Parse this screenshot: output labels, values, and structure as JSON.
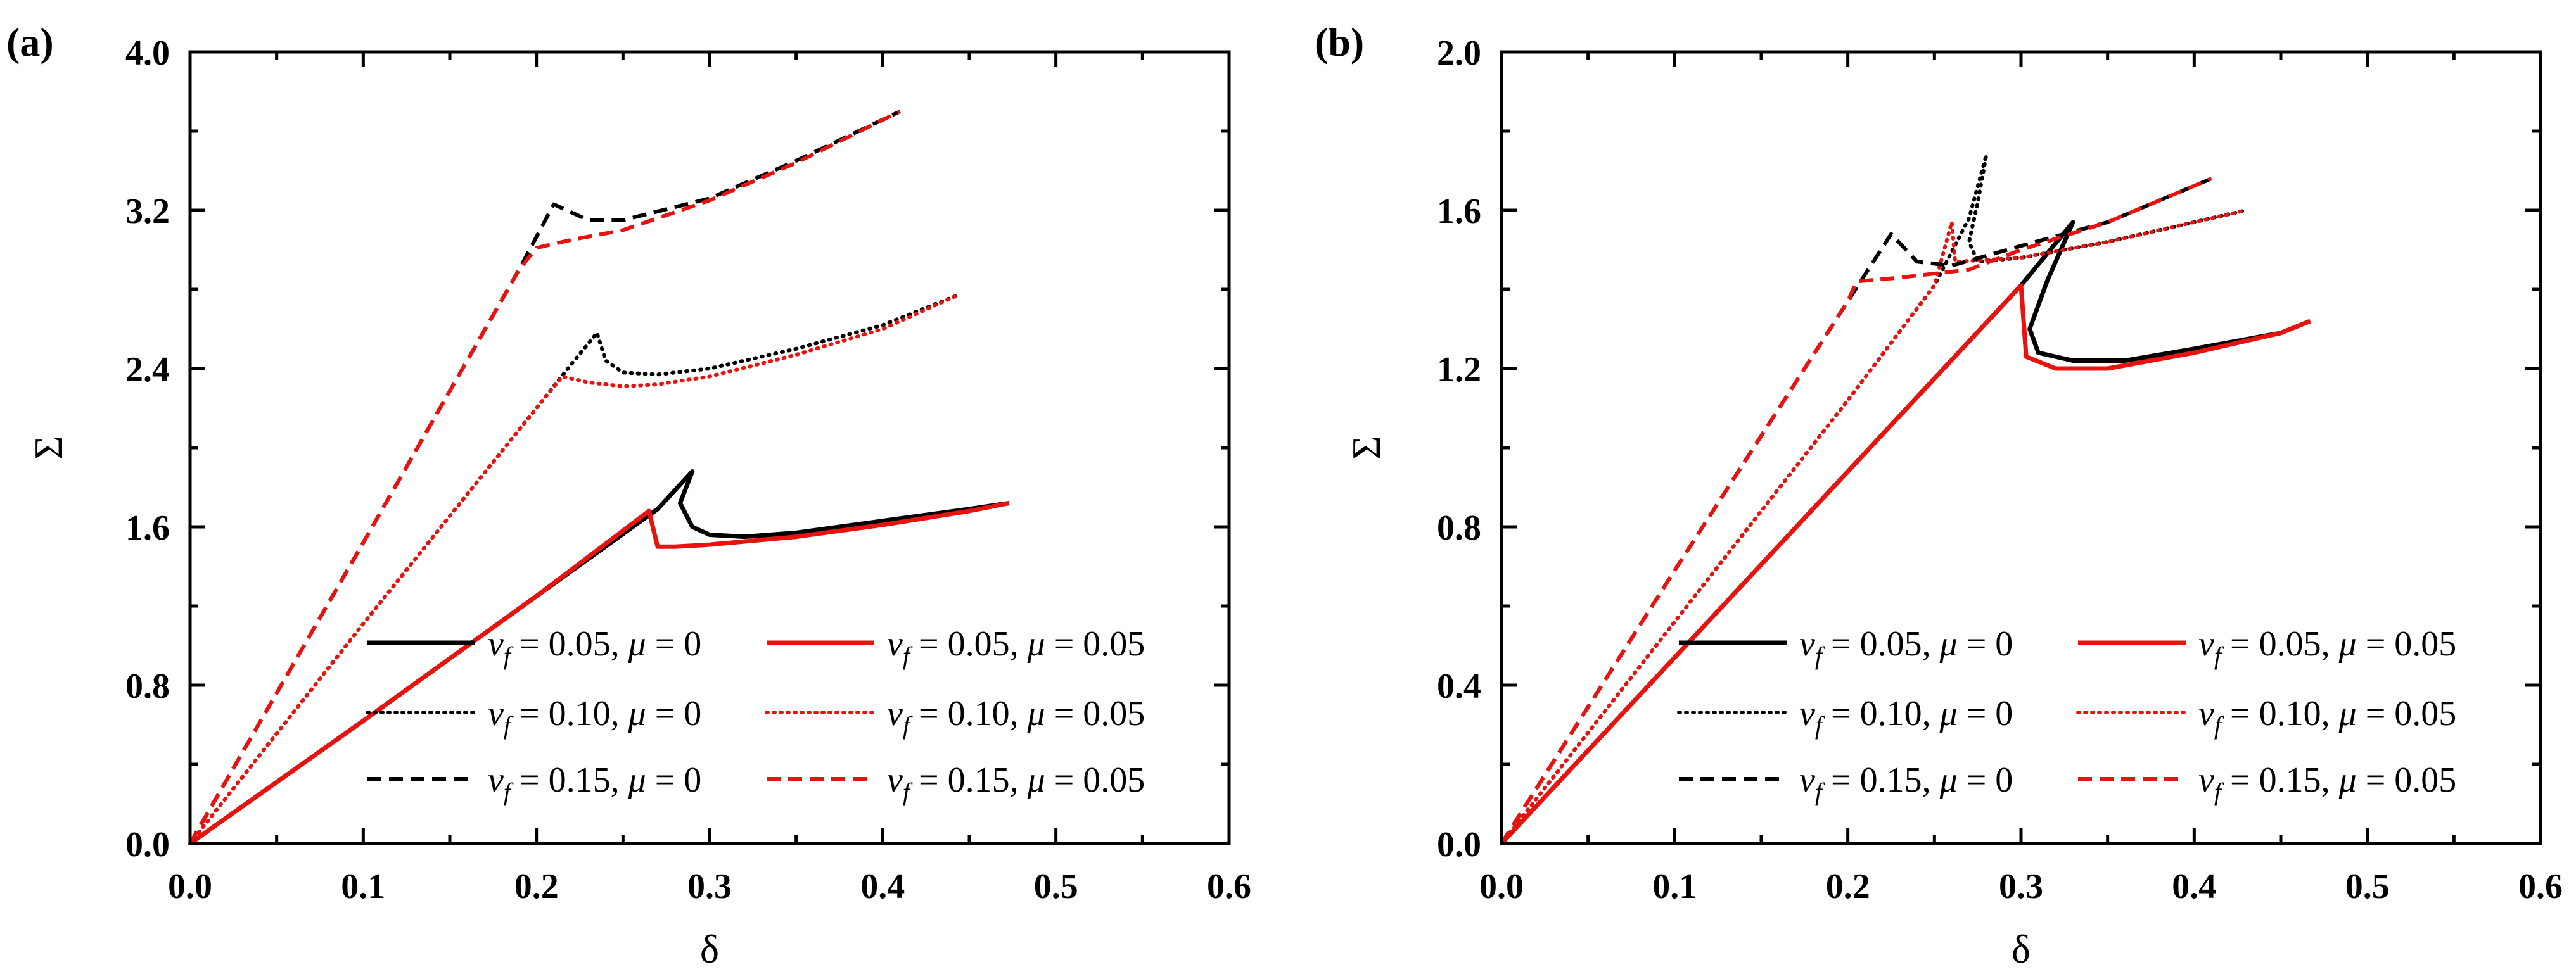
{
  "chart_data": [
    {
      "type": "line",
      "panel_label": "(a)",
      "xlabel": "δ",
      "ylabel": "Σ",
      "xlim": [
        0,
        0.6
      ],
      "ylim": [
        0,
        4.0
      ],
      "xticks": [
        "0.0",
        "0.1",
        "0.2",
        "0.3",
        "0.4",
        "0.5",
        "0.6"
      ],
      "yticks": [
        "0.0",
        "0.8",
        "1.6",
        "2.4",
        "3.2",
        "4.0"
      ],
      "legend_position": "bottom-right",
      "legend": [
        {
          "vf": "0.05",
          "mu": "0"
        },
        {
          "vf": "0.05",
          "mu": "0.05"
        },
        {
          "vf": "0.10",
          "mu": "0"
        },
        {
          "vf": "0.10",
          "mu": "0.05"
        },
        {
          "vf": "0.15",
          "mu": "0"
        },
        {
          "vf": "0.15",
          "mu": "0.05"
        }
      ],
      "series": [
        {
          "name": "v_f = 0.05, μ = 0",
          "color": "#000000",
          "style": "solid",
          "points": [
            [
              0,
              0
            ],
            [
              0.1,
              0.62
            ],
            [
              0.2,
              1.25
            ],
            [
              0.27,
              1.69
            ],
            [
              0.29,
              1.88
            ],
            [
              0.283,
              1.72
            ],
            [
              0.29,
              1.6
            ],
            [
              0.3,
              1.56
            ],
            [
              0.32,
              1.55
            ],
            [
              0.35,
              1.57
            ],
            [
              0.4,
              1.63
            ],
            [
              0.45,
              1.69
            ],
            [
              0.473,
              1.72
            ]
          ]
        },
        {
          "name": "v_f = 0.05, μ = 0.05",
          "color": "#e8130f",
          "style": "solid",
          "points": [
            [
              0,
              0
            ],
            [
              0.1,
              0.62
            ],
            [
              0.2,
              1.25
            ],
            [
              0.265,
              1.68
            ],
            [
              0.27,
              1.5
            ],
            [
              0.28,
              1.5
            ],
            [
              0.3,
              1.51
            ],
            [
              0.35,
              1.55
            ],
            [
              0.4,
              1.61
            ],
            [
              0.45,
              1.68
            ],
            [
              0.473,
              1.72
            ]
          ]
        },
        {
          "name": "v_f = 0.10, μ = 0",
          "color": "#000000",
          "style": "dotted",
          "points": [
            [
              0,
              0
            ],
            [
              0.1,
              1.11
            ],
            [
              0.2,
              2.2
            ],
            [
              0.22,
              2.42
            ],
            [
              0.235,
              2.58
            ],
            [
              0.24,
              2.44
            ],
            [
              0.25,
              2.38
            ],
            [
              0.27,
              2.37
            ],
            [
              0.3,
              2.4
            ],
            [
              0.35,
              2.5
            ],
            [
              0.4,
              2.62
            ],
            [
              0.443,
              2.77
            ]
          ]
        },
        {
          "name": "v_f = 0.10, μ = 0.05",
          "color": "#e8130f",
          "style": "dotted",
          "points": [
            [
              0,
              0
            ],
            [
              0.1,
              1.11
            ],
            [
              0.2,
              2.2
            ],
            [
              0.215,
              2.36
            ],
            [
              0.23,
              2.33
            ],
            [
              0.25,
              2.31
            ],
            [
              0.27,
              2.32
            ],
            [
              0.3,
              2.36
            ],
            [
              0.35,
              2.47
            ],
            [
              0.4,
              2.6
            ],
            [
              0.443,
              2.77
            ]
          ]
        },
        {
          "name": "v_f = 0.15, μ = 0",
          "color": "#000000",
          "style": "dashed",
          "points": [
            [
              0,
              0
            ],
            [
              0.1,
              1.52
            ],
            [
              0.19,
              2.9
            ],
            [
              0.21,
              3.23
            ],
            [
              0.23,
              3.15
            ],
            [
              0.25,
              3.15
            ],
            [
              0.3,
              3.26
            ],
            [
              0.35,
              3.45
            ],
            [
              0.41,
              3.7
            ]
          ]
        },
        {
          "name": "v_f = 0.15, μ = 0.05",
          "color": "#e8130f",
          "style": "dashed",
          "points": [
            [
              0,
              0
            ],
            [
              0.1,
              1.52
            ],
            [
              0.19,
              2.9
            ],
            [
              0.2,
              3.01
            ],
            [
              0.22,
              3.05
            ],
            [
              0.25,
              3.1
            ],
            [
              0.3,
              3.25
            ],
            [
              0.35,
              3.44
            ],
            [
              0.41,
              3.7
            ]
          ]
        }
      ]
    },
    {
      "type": "line",
      "panel_label": "(b)",
      "xlabel": "δ",
      "ylabel": "Σ",
      "xlim": [
        0,
        0.6
      ],
      "ylim": [
        0,
        2.0
      ],
      "xticks": [
        "0.0",
        "0.1",
        "0.2",
        "0.3",
        "0.4",
        "0.5",
        "0.6"
      ],
      "yticks": [
        "0.0",
        "0.4",
        "0.8",
        "1.2",
        "1.6",
        "2.0"
      ],
      "legend_position": "bottom-right",
      "legend": [
        {
          "vf": "0.05",
          "mu": "0"
        },
        {
          "vf": "0.05",
          "mu": "0.05"
        },
        {
          "vf": "0.10",
          "mu": "0"
        },
        {
          "vf": "0.10",
          "mu": "0.05"
        },
        {
          "vf": "0.15",
          "mu": "0"
        },
        {
          "vf": "0.15",
          "mu": "0.05"
        }
      ],
      "series": [
        {
          "name": "v_f = 0.05, μ = 0",
          "color": "#000000",
          "style": "solid",
          "points": [
            [
              0,
              0
            ],
            [
              0.1,
              0.47
            ],
            [
              0.2,
              0.94
            ],
            [
              0.3,
              1.41
            ],
            [
              0.33,
              1.57
            ],
            [
              0.315,
              1.42
            ],
            [
              0.305,
              1.3
            ],
            [
              0.31,
              1.24
            ],
            [
              0.33,
              1.22
            ],
            [
              0.36,
              1.22
            ],
            [
              0.4,
              1.25
            ],
            [
              0.45,
              1.29
            ],
            [
              0.467,
              1.32
            ]
          ]
        },
        {
          "name": "v_f = 0.05, μ = 0.05",
          "color": "#e8130f",
          "style": "solid",
          "points": [
            [
              0,
              0
            ],
            [
              0.1,
              0.47
            ],
            [
              0.2,
              0.94
            ],
            [
              0.3,
              1.41
            ],
            [
              0.303,
              1.23
            ],
            [
              0.32,
              1.2
            ],
            [
              0.35,
              1.2
            ],
            [
              0.4,
              1.24
            ],
            [
              0.45,
              1.29
            ],
            [
              0.467,
              1.32
            ]
          ]
        },
        {
          "name": "v_f = 0.10, μ = 0",
          "color": "#000000",
          "style": "dotted",
          "points": [
            [
              0,
              0
            ],
            [
              0.1,
              0.56
            ],
            [
              0.2,
              1.12
            ],
            [
              0.25,
              1.41
            ],
            [
              0.27,
              1.58
            ],
            [
              0.28,
              1.74
            ],
            [
              0.275,
              1.62
            ],
            [
              0.27,
              1.52
            ],
            [
              0.275,
              1.47
            ],
            [
              0.3,
              1.48
            ],
            [
              0.35,
              1.52
            ],
            [
              0.4,
              1.57
            ],
            [
              0.43,
              1.6
            ]
          ]
        },
        {
          "name": "v_f = 0.10, μ = 0.05",
          "color": "#e8130f",
          "style": "dotted",
          "points": [
            [
              0,
              0
            ],
            [
              0.1,
              0.56
            ],
            [
              0.2,
              1.12
            ],
            [
              0.25,
              1.41
            ],
            [
              0.26,
              1.57
            ],
            [
              0.262,
              1.47
            ],
            [
              0.3,
              1.48
            ],
            [
              0.35,
              1.52
            ],
            [
              0.4,
              1.57
            ],
            [
              0.43,
              1.6
            ]
          ]
        },
        {
          "name": "v_f = 0.15, μ = 0",
          "color": "#000000",
          "style": "dashed",
          "points": [
            [
              0,
              0
            ],
            [
              0.1,
              0.69
            ],
            [
              0.2,
              1.37
            ],
            [
              0.225,
              1.54
            ],
            [
              0.24,
              1.47
            ],
            [
              0.26,
              1.46
            ],
            [
              0.3,
              1.51
            ],
            [
              0.35,
              1.57
            ],
            [
              0.41,
              1.68
            ]
          ]
        },
        {
          "name": "v_f = 0.15, μ = 0.05",
          "color": "#e8130f",
          "style": "dashed",
          "points": [
            [
              0,
              0
            ],
            [
              0.1,
              0.69
            ],
            [
              0.2,
              1.37
            ],
            [
              0.205,
              1.42
            ],
            [
              0.23,
              1.43
            ],
            [
              0.27,
              1.45
            ],
            [
              0.3,
              1.5
            ],
            [
              0.35,
              1.57
            ],
            [
              0.41,
              1.68
            ]
          ]
        }
      ]
    }
  ]
}
